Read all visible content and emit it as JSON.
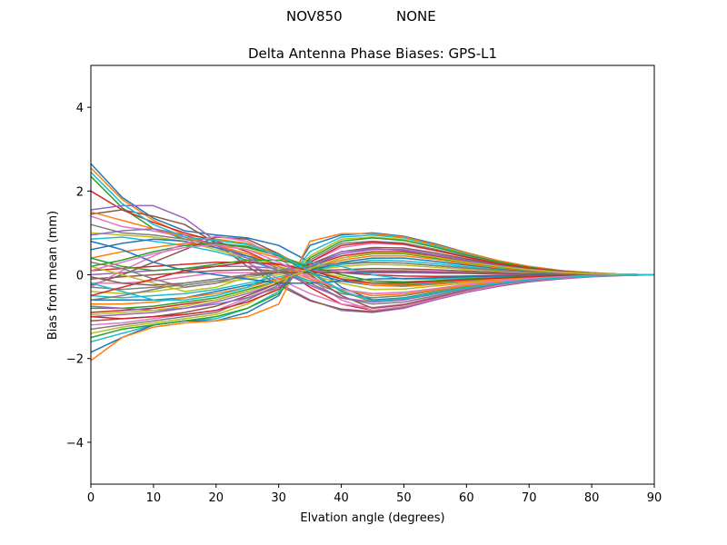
{
  "figure": {
    "suptitle_left": "NOV850",
    "suptitle_right": "NONE"
  },
  "chart_data": {
    "type": "line",
    "title": "Delta Antenna Phase Biases: GPS-L1",
    "xlabel": "Elvation angle (degrees)",
    "ylabel": "Bias from mean (mm)",
    "xlim": [
      0,
      90
    ],
    "ylim": [
      -5,
      5
    ],
    "xticks": [
      "0",
      "10",
      "20",
      "30",
      "40",
      "50",
      "60",
      "70",
      "80",
      "90"
    ],
    "yticks": [
      "−4",
      "−2",
      "0",
      "2",
      "4"
    ],
    "grid": false,
    "legend": "none",
    "x": [
      0,
      5,
      10,
      15,
      20,
      25,
      30,
      35,
      40,
      45,
      50,
      55,
      60,
      65,
      70,
      75,
      80,
      85,
      90
    ],
    "colors": [
      "#1f77b4",
      "#ff7f0e",
      "#2ca02c",
      "#d62728",
      "#9467bd",
      "#8c564b",
      "#e377c2",
      "#7f7f7f",
      "#bcbd22",
      "#17becf"
    ],
    "series": [
      {
        "values": [
          2.65,
          1.85,
          1.35,
          1.05,
          0.95,
          0.88,
          0.7,
          0.3,
          -0.3,
          -0.6,
          -0.55,
          -0.42,
          -0.3,
          -0.2,
          -0.12,
          -0.07,
          -0.03,
          -0.01,
          0
        ]
      },
      {
        "values": [
          2.55,
          1.8,
          1.3,
          0.95,
          0.85,
          0.75,
          0.5,
          0.1,
          -0.4,
          -0.65,
          -0.58,
          -0.45,
          -0.32,
          -0.21,
          -0.13,
          -0.07,
          -0.03,
          -0.01,
          0
        ]
      },
      {
        "values": [
          2.35,
          1.6,
          1.1,
          0.85,
          0.75,
          0.68,
          0.45,
          0.05,
          -0.4,
          -0.62,
          -0.56,
          -0.42,
          -0.3,
          -0.2,
          -0.12,
          -0.07,
          -0.03,
          -0.01,
          0
        ]
      },
      {
        "values": [
          2.0,
          1.55,
          1.25,
          1.0,
          0.8,
          0.55,
          0.2,
          -0.3,
          -0.7,
          -0.85,
          -0.78,
          -0.58,
          -0.4,
          -0.26,
          -0.16,
          -0.09,
          -0.04,
          -0.01,
          0
        ]
      },
      {
        "values": [
          1.55,
          1.65,
          1.65,
          1.35,
          0.8,
          0.3,
          -0.2,
          -0.6,
          -0.85,
          -0.9,
          -0.8,
          -0.6,
          -0.42,
          -0.28,
          -0.17,
          -0.1,
          -0.05,
          -0.02,
          0
        ]
      },
      {
        "values": [
          1.45,
          1.55,
          1.4,
          1.2,
          0.75,
          0.2,
          -0.25,
          -0.62,
          -0.82,
          -0.88,
          -0.77,
          -0.58,
          -0.4,
          -0.27,
          -0.16,
          -0.09,
          -0.04,
          -0.01,
          0
        ]
      },
      {
        "values": [
          1.4,
          1.15,
          1.05,
          0.9,
          0.65,
          0.3,
          -0.1,
          -0.45,
          -0.7,
          -0.78,
          -0.7,
          -0.53,
          -0.37,
          -0.24,
          -0.15,
          -0.08,
          -0.04,
          -0.01,
          0
        ]
      },
      {
        "values": [
          1.2,
          1.0,
          0.95,
          0.85,
          0.7,
          0.45,
          0.15,
          -0.15,
          -0.45,
          -0.55,
          -0.5,
          -0.38,
          -0.27,
          -0.18,
          -0.11,
          -0.06,
          -0.03,
          -0.01,
          0
        ]
      },
      {
        "values": [
          1.0,
          0.95,
          0.9,
          0.8,
          0.6,
          0.4,
          0.2,
          0.0,
          -0.2,
          -0.35,
          -0.34,
          -0.27,
          -0.2,
          -0.13,
          -0.08,
          -0.05,
          -0.02,
          -0.01,
          0
        ]
      },
      {
        "values": [
          0.85,
          0.9,
          0.8,
          0.7,
          0.55,
          0.35,
          0.1,
          -0.15,
          -0.35,
          -0.45,
          -0.42,
          -0.33,
          -0.24,
          -0.16,
          -0.1,
          -0.05,
          -0.02,
          -0.01,
          0
        ]
      },
      {
        "values": [
          0.6,
          0.75,
          0.85,
          0.8,
          0.65,
          0.45,
          0.25,
          0.05,
          -0.15,
          -0.25,
          -0.25,
          -0.2,
          -0.15,
          -0.1,
          -0.06,
          -0.04,
          -0.02,
          -0.01,
          0
        ]
      },
      {
        "values": [
          0.4,
          0.55,
          0.65,
          0.75,
          0.7,
          0.6,
          0.4,
          0.15,
          -0.1,
          -0.25,
          -0.28,
          -0.23,
          -0.17,
          -0.11,
          -0.07,
          -0.04,
          -0.02,
          -0.01,
          0
        ]
      },
      {
        "values": [
          0.2,
          0.35,
          0.55,
          0.7,
          0.75,
          0.65,
          0.45,
          0.2,
          0.0,
          -0.15,
          -0.18,
          -0.15,
          -0.11,
          -0.07,
          -0.04,
          -0.02,
          -0.01,
          0.0,
          0
        ]
      },
      {
        "values": [
          0.1,
          0.15,
          0.2,
          0.25,
          0.3,
          0.3,
          0.25,
          0.15,
          0.05,
          0.0,
          -0.03,
          -0.04,
          -0.03,
          -0.02,
          -0.02,
          -0.01,
          0.0,
          0.0,
          0
        ]
      },
      {
        "values": [
          0.0,
          0.05,
          0.1,
          0.15,
          0.2,
          0.2,
          0.15,
          0.1,
          0.05,
          0.05,
          0.05,
          0.04,
          0.03,
          0.02,
          0.01,
          0.01,
          0.0,
          0.0,
          0
        ]
      },
      {
        "values": [
          -0.1,
          -0.05,
          0.0,
          0.05,
          0.1,
          0.12,
          0.1,
          0.1,
          0.12,
          0.15,
          0.14,
          0.12,
          0.09,
          0.06,
          0.04,
          0.02,
          0.01,
          0.0,
          0
        ]
      },
      {
        "values": [
          -0.2,
          -0.2,
          -0.15,
          -0.05,
          0.05,
          0.05,
          0.05,
          0.05,
          0.1,
          0.1,
          0.1,
          0.08,
          0.06,
          0.04,
          0.03,
          0.02,
          0.01,
          0.0,
          0
        ]
      },
      {
        "values": [
          -0.3,
          -0.35,
          -0.3,
          -0.25,
          -0.15,
          -0.05,
          0.05,
          0.15,
          0.25,
          0.3,
          0.28,
          0.22,
          0.16,
          0.1,
          0.06,
          0.03,
          0.01,
          0.0,
          0
        ]
      },
      {
        "values": [
          -0.4,
          -0.45,
          -0.4,
          -0.3,
          -0.2,
          -0.1,
          0.0,
          0.1,
          0.2,
          0.25,
          0.23,
          0.18,
          0.13,
          0.09,
          0.05,
          0.03,
          0.01,
          0.0,
          0
        ]
      },
      {
        "values": [
          -0.5,
          -0.55,
          -0.5,
          -0.45,
          -0.35,
          -0.2,
          -0.05,
          0.1,
          0.25,
          0.35,
          0.33,
          0.27,
          0.19,
          0.12,
          0.07,
          0.04,
          0.02,
          0.01,
          0
        ]
      },
      {
        "values": [
          -0.6,
          -0.6,
          -0.6,
          -0.55,
          -0.4,
          -0.25,
          -0.1,
          0.1,
          0.3,
          0.4,
          0.4,
          0.32,
          0.23,
          0.15,
          0.09,
          0.05,
          0.02,
          0.01,
          0
        ]
      },
      {
        "values": [
          -0.7,
          -0.7,
          -0.65,
          -0.55,
          -0.45,
          -0.3,
          -0.1,
          0.15,
          0.35,
          0.45,
          0.45,
          0.37,
          0.26,
          0.17,
          0.1,
          0.05,
          0.02,
          0.01,
          0
        ]
      },
      {
        "values": [
          -0.8,
          -0.8,
          -0.75,
          -0.65,
          -0.55,
          -0.35,
          -0.15,
          0.15,
          0.4,
          0.5,
          0.5,
          0.4,
          0.29,
          0.19,
          0.11,
          0.06,
          0.03,
          0.01,
          0
        ]
      },
      {
        "values": [
          -0.9,
          -0.85,
          -0.8,
          -0.7,
          -0.6,
          -0.4,
          -0.15,
          0.2,
          0.45,
          0.55,
          0.55,
          0.44,
          0.32,
          0.21,
          0.12,
          0.06,
          0.03,
          0.01,
          0
        ]
      },
      {
        "values": [
          -1.0,
          -0.95,
          -0.9,
          -0.8,
          -0.65,
          -0.45,
          -0.2,
          0.2,
          0.5,
          0.6,
          0.6,
          0.48,
          0.35,
          0.23,
          0.13,
          0.07,
          0.03,
          0.01,
          0
        ]
      },
      {
        "values": [
          -1.1,
          -1.05,
          -1.0,
          -0.9,
          -0.75,
          -0.5,
          -0.2,
          0.25,
          0.55,
          0.65,
          0.64,
          0.52,
          0.38,
          0.25,
          0.14,
          0.07,
          0.03,
          0.01,
          0
        ]
      },
      {
        "values": [
          -1.2,
          -1.15,
          -1.05,
          -0.95,
          -0.85,
          -0.55,
          -0.25,
          0.3,
          0.65,
          0.75,
          0.72,
          0.58,
          0.42,
          0.27,
          0.16,
          0.08,
          0.04,
          0.01,
          0
        ]
      },
      {
        "values": [
          -1.3,
          -1.2,
          -1.1,
          -1.0,
          -0.9,
          -0.6,
          -0.25,
          0.35,
          0.75,
          0.8,
          0.76,
          0.61,
          0.44,
          0.29,
          0.17,
          0.09,
          0.04,
          0.01,
          0
        ]
      },
      {
        "values": [
          -1.4,
          -1.25,
          -1.15,
          -1.05,
          -0.95,
          -0.7,
          -0.3,
          0.45,
          0.85,
          0.9,
          0.84,
          0.67,
          0.48,
          0.31,
          0.18,
          0.09,
          0.04,
          0.01,
          0
        ]
      },
      {
        "values": [
          -1.6,
          -1.4,
          -1.2,
          -1.1,
          -1.05,
          -0.8,
          -0.4,
          0.55,
          0.9,
          0.95,
          0.88,
          0.7,
          0.5,
          0.33,
          0.19,
          0.1,
          0.04,
          0.01,
          0
        ]
      },
      {
        "values": [
          -1.85,
          -1.5,
          -1.2,
          -1.1,
          -1.1,
          -0.9,
          -0.5,
          0.7,
          0.95,
          1.0,
          0.92,
          0.74,
          0.53,
          0.34,
          0.2,
          0.1,
          0.05,
          0.01,
          0
        ]
      },
      {
        "values": [
          -2.05,
          -1.5,
          -1.25,
          -1.15,
          -1.1,
          -1.0,
          -0.7,
          0.8,
          0.98,
          0.98,
          0.9,
          0.72,
          0.52,
          0.34,
          0.2,
          0.1,
          0.05,
          0.01,
          0
        ]
      },
      {
        "values": [
          -1.5,
          -1.3,
          -1.2,
          -1.1,
          -1.0,
          -0.8,
          -0.45,
          0.4,
          0.8,
          0.88,
          0.82,
          0.66,
          0.47,
          0.31,
          0.18,
          0.09,
          0.04,
          0.01,
          0
        ]
      },
      {
        "values": [
          -1.0,
          -1.05,
          -1.0,
          -0.95,
          -0.85,
          -0.65,
          -0.35,
          0.3,
          0.7,
          0.78,
          0.73,
          0.58,
          0.42,
          0.27,
          0.16,
          0.08,
          0.04,
          0.01,
          0
        ]
      },
      {
        "values": [
          -0.75,
          -0.8,
          -0.85,
          -0.8,
          -0.7,
          -0.55,
          -0.3,
          0.2,
          0.55,
          0.62,
          0.58,
          0.47,
          0.34,
          0.22,
          0.13,
          0.07,
          0.03,
          0.01,
          0
        ]
      },
      {
        "values": [
          -0.25,
          0.0,
          0.3,
          0.6,
          0.9,
          0.85,
          0.5,
          0.0,
          -0.5,
          -0.8,
          -0.72,
          -0.55,
          -0.38,
          -0.25,
          -0.15,
          -0.08,
          -0.04,
          -0.01,
          0
        ]
      },
      {
        "values": [
          -0.3,
          0.1,
          0.45,
          0.75,
          0.92,
          0.8,
          0.4,
          -0.1,
          -0.6,
          -0.85,
          -0.76,
          -0.58,
          -0.4,
          -0.26,
          -0.15,
          -0.08,
          -0.04,
          -0.01,
          0
        ]
      },
      {
        "values": [
          0.3,
          0.15,
          -0.1,
          -0.3,
          -0.2,
          0.0,
          0.1,
          -0.2,
          -0.55,
          -0.7,
          -0.65,
          -0.5,
          -0.35,
          -0.23,
          -0.14,
          -0.07,
          -0.03,
          -0.01,
          0
        ]
      },
      {
        "values": [
          0.2,
          0.0,
          -0.2,
          -0.4,
          -0.3,
          -0.05,
          0.15,
          0.1,
          -0.05,
          -0.2,
          -0.22,
          -0.18,
          -0.13,
          -0.09,
          -0.05,
          -0.03,
          -0.01,
          0.0,
          0
        ]
      },
      {
        "values": [
          -0.2,
          -0.4,
          -0.6,
          -0.6,
          -0.5,
          -0.3,
          0.1,
          0.3,
          0.2,
          0.0,
          -0.1,
          -0.1,
          -0.08,
          -0.05,
          -0.03,
          -0.02,
          -0.01,
          0.0,
          0
        ]
      },
      {
        "values": [
          0.8,
          0.6,
          0.3,
          0.1,
          0.0,
          -0.1,
          -0.2,
          -0.2,
          -0.15,
          -0.1,
          -0.09,
          -0.07,
          -0.05,
          -0.03,
          -0.02,
          -0.01,
          0.0,
          0.0,
          0
        ]
      },
      {
        "values": [
          1.5,
          1.3,
          1.1,
          0.9,
          0.7,
          0.5,
          0.2,
          -0.1,
          -0.35,
          -0.5,
          -0.46,
          -0.36,
          -0.26,
          -0.17,
          -0.1,
          -0.05,
          -0.02,
          -0.01,
          0
        ]
      },
      {
        "values": [
          0.4,
          0.2,
          0.1,
          0.15,
          0.25,
          0.35,
          0.35,
          0.2,
          0.0,
          -0.15,
          -0.17,
          -0.14,
          -0.1,
          -0.07,
          -0.04,
          -0.02,
          -0.01,
          0.0,
          0
        ]
      },
      {
        "values": [
          -0.5,
          -0.3,
          -0.1,
          0.1,
          0.2,
          0.3,
          0.25,
          0.1,
          -0.1,
          -0.2,
          -0.2,
          -0.16,
          -0.12,
          -0.08,
          -0.05,
          -0.02,
          -0.01,
          0.0,
          0
        ]
      },
      {
        "values": [
          0.95,
          1.05,
          1.1,
          0.95,
          0.7,
          0.4,
          0.1,
          -0.25,
          -0.55,
          -0.65,
          -0.6,
          -0.46,
          -0.32,
          -0.21,
          -0.13,
          -0.07,
          -0.03,
          -0.01,
          0
        ]
      },
      {
        "values": [
          -0.05,
          -0.2,
          -0.25,
          -0.2,
          -0.1,
          0.0,
          0.05,
          0.05,
          0.05,
          0.08,
          0.08,
          0.06,
          0.05,
          0.03,
          0.02,
          0.01,
          0.0,
          0.0,
          0
        ]
      },
      {
        "values": [
          0.1,
          0.3,
          0.5,
          0.65,
          0.72,
          0.6,
          0.3,
          -0.05,
          -0.35,
          -0.45,
          -0.42,
          -0.33,
          -0.23,
          -0.15,
          -0.09,
          -0.05,
          -0.02,
          -0.01,
          0
        ]
      },
      {
        "values": [
          -0.6,
          -0.5,
          -0.35,
          -0.2,
          -0.1,
          0.0,
          0.1,
          0.2,
          0.28,
          0.3,
          0.28,
          0.22,
          0.16,
          0.11,
          0.06,
          0.03,
          0.01,
          0.0,
          0
        ]
      },
      {
        "values": [
          -0.95,
          -0.9,
          -0.85,
          -0.75,
          -0.6,
          -0.4,
          -0.15,
          0.15,
          0.4,
          0.52,
          0.52,
          0.42,
          0.3,
          0.2,
          0.12,
          0.06,
          0.03,
          0.01,
          0
        ]
      },
      {
        "values": [
          2.45,
          1.7,
          1.2,
          0.9,
          0.82,
          0.72,
          0.48,
          0.08,
          -0.38,
          -0.63,
          -0.57,
          -0.44,
          -0.31,
          -0.2,
          -0.12,
          -0.07,
          -0.03,
          -0.01,
          0
        ]
      }
    ]
  }
}
